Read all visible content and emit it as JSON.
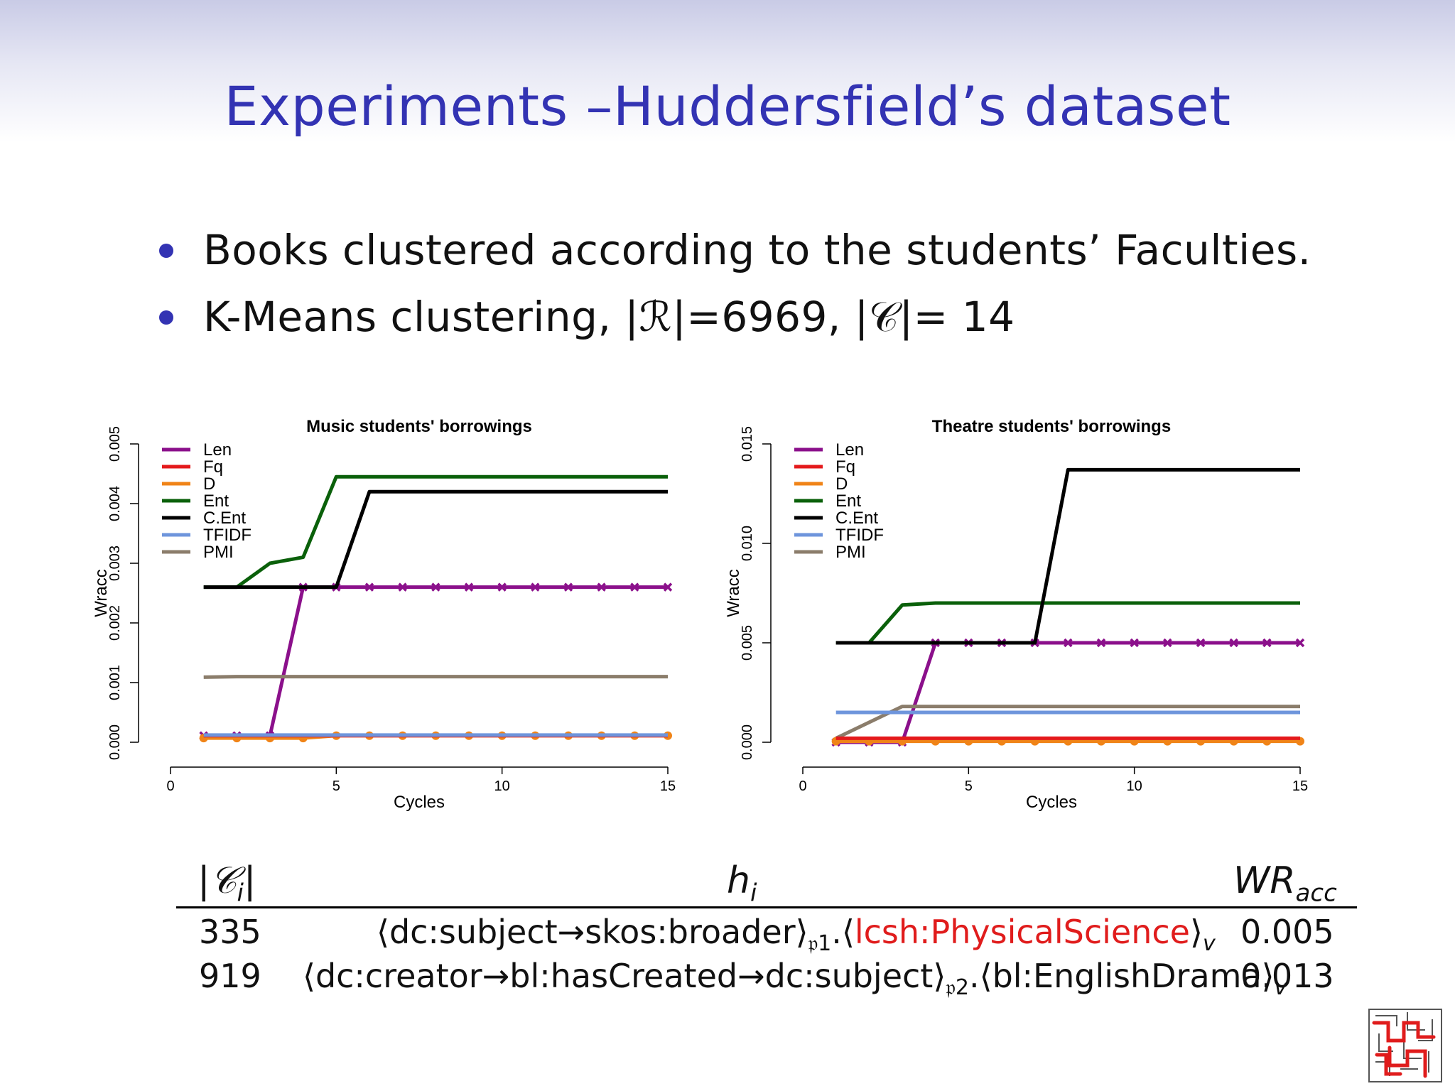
{
  "slide": {
    "title": "Experiments –Huddersfield’s dataset",
    "bullets": [
      "Books clustered according to the students’ Faculties.",
      "K-Means clustering, |ℛ|=6969, |𝒞|= 14"
    ]
  },
  "colors": {
    "title": "#3333b3",
    "Len": "#8b108b",
    "Fq": "#e41a1c",
    "D": "#f08418",
    "Ent": "#0a600a",
    "C.Ent": "#000000",
    "TFIDF": "#6e95dc",
    "PMI": "#8b7d6b",
    "highlight": "#e01c1c"
  },
  "chart_data": [
    {
      "type": "line",
      "title": "Music students' borrowings",
      "xlabel": "Cycles",
      "ylabel": "Wracc",
      "xlim": [
        0,
        15
      ],
      "ylim": [
        0,
        0.005
      ],
      "xticks": [
        0,
        5,
        10,
        15
      ],
      "xtick_labels": [
        "0",
        "5",
        "10",
        "15"
      ],
      "yticks": [
        0,
        0.001,
        0.002,
        0.003,
        0.004,
        0.005
      ],
      "ytick_labels": [
        "0.000",
        "0.001",
        "0.002",
        "0.003",
        "0.004",
        "0.005"
      ],
      "legend_position": "top-left",
      "x": [
        1,
        2,
        3,
        4,
        5,
        6,
        7,
        8,
        9,
        10,
        11,
        12,
        13,
        14,
        15
      ],
      "series": [
        {
          "name": "Len",
          "marker": "x",
          "values": [
            0.00011,
            0.00011,
            0.00011,
            0.0026,
            0.0026,
            0.0026,
            0.0026,
            0.0026,
            0.0026,
            0.0026,
            0.0026,
            0.0026,
            0.0026,
            0.0026,
            0.0026
          ]
        },
        {
          "name": "Fq",
          "marker": "none",
          "values": [
            0.00011,
            0.00011,
            0.00011,
            0.00011,
            0.00011,
            0.00011,
            0.00011,
            0.00011,
            0.00011,
            0.00011,
            0.00011,
            0.00011,
            0.00011,
            0.00011,
            0.00011
          ]
        },
        {
          "name": "D",
          "marker": "o",
          "values": [
            7e-05,
            7e-05,
            7e-05,
            7e-05,
            0.00011,
            0.00011,
            0.00011,
            0.00011,
            0.00011,
            0.00011,
            0.00011,
            0.00011,
            0.00011,
            0.00011,
            0.00011
          ]
        },
        {
          "name": "Ent",
          "marker": "none",
          "values": [
            0.0026,
            0.0026,
            0.003,
            0.0031,
            0.00445,
            0.00445,
            0.00445,
            0.00445,
            0.00445,
            0.00445,
            0.00445,
            0.00445,
            0.00445,
            0.00445,
            0.00445
          ]
        },
        {
          "name": "C.Ent",
          "marker": "none",
          "values": [
            0.0026,
            0.0026,
            0.0026,
            0.0026,
            0.0026,
            0.0042,
            0.0042,
            0.0042,
            0.0042,
            0.0042,
            0.0042,
            0.0042,
            0.0042,
            0.0042,
            0.0042
          ]
        },
        {
          "name": "TFIDF",
          "marker": "none",
          "values": [
            0.00012,
            0.00012,
            0.00012,
            0.00012,
            0.00012,
            0.00012,
            0.00012,
            0.00012,
            0.00012,
            0.00012,
            0.00012,
            0.00012,
            0.00012,
            0.00012,
            0.00012
          ]
        },
        {
          "name": "PMI",
          "marker": "none",
          "values": [
            0.00109,
            0.0011,
            0.0011,
            0.0011,
            0.0011,
            0.0011,
            0.0011,
            0.0011,
            0.0011,
            0.0011,
            0.0011,
            0.0011,
            0.0011,
            0.0011,
            0.0011
          ]
        }
      ]
    },
    {
      "type": "line",
      "title": "Theatre students' borrowings",
      "xlabel": "Cycles",
      "ylabel": "Wracc",
      "xlim": [
        0,
        15
      ],
      "ylim": [
        0,
        0.015
      ],
      "xticks": [
        0,
        5,
        10,
        15
      ],
      "xtick_labels": [
        "0",
        "5",
        "10",
        "15"
      ],
      "yticks": [
        0,
        0.005,
        0.01,
        0.015
      ],
      "ytick_labels": [
        "0.000",
        "0.005",
        "0.010",
        "0.015"
      ],
      "legend_position": "top-left",
      "x": [
        1,
        2,
        3,
        4,
        5,
        6,
        7,
        8,
        9,
        10,
        11,
        12,
        13,
        14,
        15
      ],
      "series": [
        {
          "name": "Len",
          "marker": "x",
          "values": [
            0.0,
            0.0,
            0.0,
            0.005,
            0.005,
            0.005,
            0.005,
            0.005,
            0.005,
            0.005,
            0.005,
            0.005,
            0.005,
            0.005,
            0.005
          ]
        },
        {
          "name": "Fq",
          "marker": "none",
          "values": [
            0.0002,
            0.0002,
            0.0002,
            0.0002,
            0.0002,
            0.0002,
            0.0002,
            0.0002,
            0.0002,
            0.0002,
            0.0002,
            0.0002,
            0.0002,
            0.0002,
            0.0002
          ]
        },
        {
          "name": "D",
          "marker": "o",
          "values": [
            5e-05,
            5e-05,
            5e-05,
            5e-05,
            5e-05,
            5e-05,
            5e-05,
            5e-05,
            5e-05,
            5e-05,
            5e-05,
            5e-05,
            5e-05,
            5e-05,
            5e-05
          ]
        },
        {
          "name": "Ent",
          "marker": "none",
          "values": [
            0.005,
            0.005,
            0.0069,
            0.007,
            0.007,
            0.007,
            0.007,
            0.007,
            0.007,
            0.007,
            0.007,
            0.007,
            0.007,
            0.007,
            0.007
          ]
        },
        {
          "name": "C.Ent",
          "marker": "none",
          "values": [
            0.005,
            0.005,
            0.005,
            0.005,
            0.005,
            0.005,
            0.005,
            0.0137,
            0.0137,
            0.0137,
            0.0137,
            0.0137,
            0.0137,
            0.0137,
            0.0137
          ]
        },
        {
          "name": "TFIDF",
          "marker": "none",
          "values": [
            0.0015,
            0.0015,
            0.0015,
            0.0015,
            0.0015,
            0.0015,
            0.0015,
            0.0015,
            0.0015,
            0.0015,
            0.0015,
            0.0015,
            0.0015,
            0.0015,
            0.0015
          ]
        },
        {
          "name": "PMI",
          "marker": "none",
          "values": [
            0.0002,
            0.001,
            0.0018,
            0.0018,
            0.0018,
            0.0018,
            0.0018,
            0.0018,
            0.0018,
            0.0018,
            0.0018,
            0.0018,
            0.0018,
            0.0018,
            0.0018
          ]
        }
      ]
    }
  ],
  "table": {
    "headers": {
      "size_base": "|𝒞",
      "size_sub": "i",
      "size_tail": "|",
      "hyp_base": "h",
      "hyp_sub": "i",
      "acc_base": "WR",
      "acc_sub": "acc"
    },
    "rows": [
      {
        "size": "335",
        "path": "⟨dc:subject→skos:broader⟩",
        "path_sub": "𝔭1",
        "sep": ".⟨",
        "value": "lcsh:PhysicalScience",
        "close": "⟩",
        "v": "v",
        "acc": "0.005"
      },
      {
        "size": "919",
        "path": "⟨dc:creator→bl:hasCreated→dc:subject⟩",
        "path_sub": "𝔭2",
        "sep": ".⟨",
        "value": "bl:EnglishDrama",
        "close": "⟩",
        "v": "v",
        "acc": "0.013"
      }
    ]
  }
}
